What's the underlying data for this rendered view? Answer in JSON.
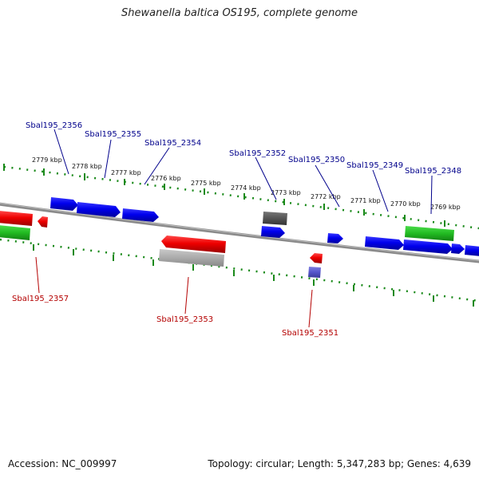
{
  "title": "Shewanella baltica OS195, complete genome",
  "accession": "Accession: NC_009997",
  "summary": "Topology: circular; Length: 5,347,283 bp; Genes: 4,639",
  "colors": {
    "backbone": "#7a7a7a",
    "tick_track": "#1a8a1a",
    "forward_label": "#00008b",
    "reverse_label": "#b40000",
    "cds_forward": "#0000ee",
    "cds_reverse": "#ee0000",
    "rna": "#22bb22",
    "pseudo_dark": "#555555",
    "pseudo_light": "#aaaaaa",
    "misc": "#5555cc"
  },
  "kbp_ticks": [
    "2779 kbp",
    "2778 kbp",
    "2777 kbp",
    "2776 kbp",
    "2775 kbp",
    "2774 kbp",
    "2773 kbp",
    "2772 kbp",
    "2771 kbp",
    "2770 kbp",
    "2769 kbp"
  ],
  "forward_labels": [
    "Sbal195_2356",
    "Sbal195_2355",
    "Sbal195_2354",
    "Sbal195_2352",
    "Sbal195_2350",
    "Sbal195_2349",
    "Sbal195_2348"
  ],
  "reverse_labels": [
    "Sbal195_2357",
    "Sbal195_2353",
    "Sbal195_2351"
  ]
}
